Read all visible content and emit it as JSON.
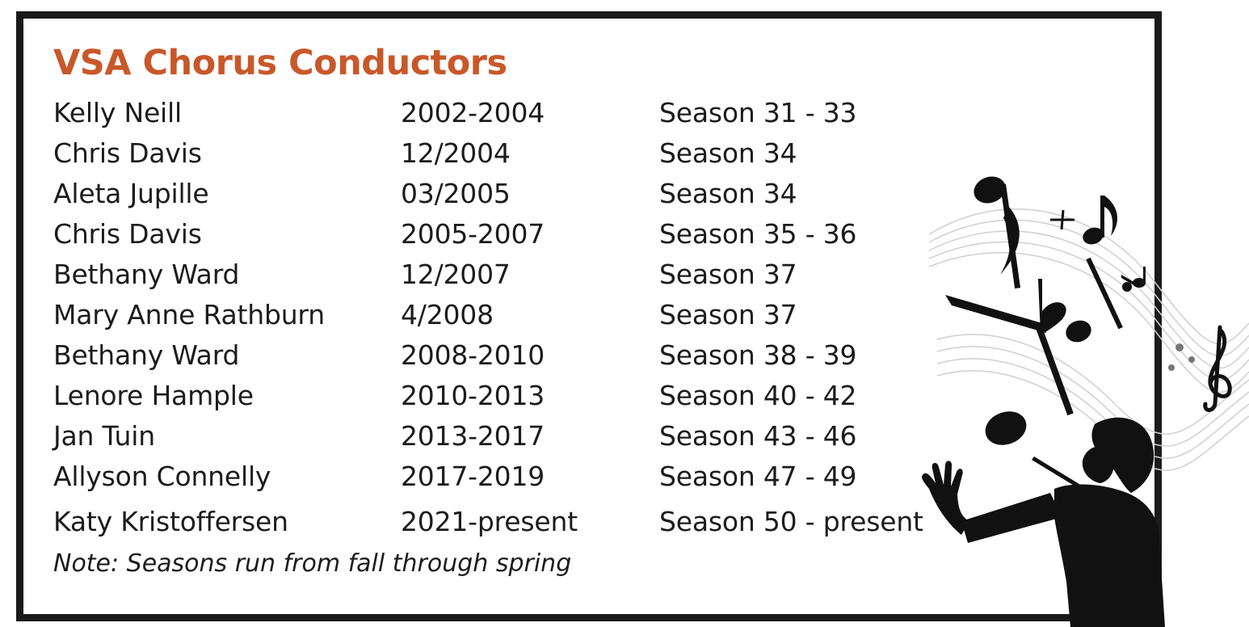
{
  "title": "VSA Chorus Conductors",
  "conductors": [
    {
      "name": "Kelly Neill",
      "dates": "2002-2004",
      "seasons": "Season 31 - 33"
    },
    {
      "name": "Chris Davis",
      "dates": "12/2004",
      "seasons": "Season 34"
    },
    {
      "name": "Aleta Jupille",
      "dates": "03/2005",
      "seasons": "Season 34"
    },
    {
      "name": "Chris Davis",
      "dates": "2005-2007",
      "seasons": "Season 35 - 36"
    },
    {
      "name": "Bethany Ward",
      "dates": "12/2007",
      "seasons": "Season 37"
    },
    {
      "name": "Mary Anne Rathburn",
      "dates": "4/2008",
      "seasons": "Season 37"
    },
    {
      "name": "Bethany Ward",
      "dates": "2008-2010",
      "seasons": "Season 38 - 39"
    },
    {
      "name": "Lenore Hample",
      "dates": "2010-2013",
      "seasons": "Season 40 - 42"
    },
    {
      "name": "Jan Tuin",
      "dates": "2013-2017",
      "seasons": "Season 43 - 46"
    },
    {
      "name": "Allyson Connelly",
      "dates": "2017-2019",
      "seasons": "Season 47 - 49"
    },
    {
      "name": "Katy Kristoffersen",
      "dates": "2021-present",
      "seasons": "Season 50 - present"
    }
  ],
  "note": "Note: Seasons run from fall through spring",
  "colors": {
    "title": "#c8582a",
    "text": "#1c1c1c",
    "border": "#1a1a1a"
  },
  "art": {
    "icons": [
      "music-notes-icon",
      "treble-clef-icon",
      "conductor-silhouette-icon"
    ]
  }
}
